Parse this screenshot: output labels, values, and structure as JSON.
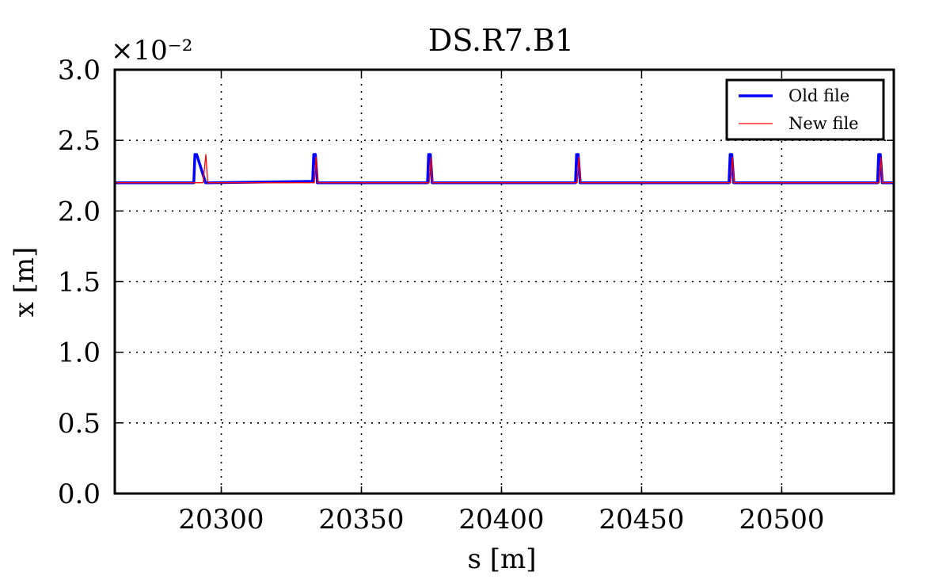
{
  "chart_data": {
    "type": "line",
    "title": "DS.R7.B1",
    "xlabel": "s [m]",
    "ylabel": "x [m]",
    "y_offset_label": "×10⁻²",
    "xlim": [
      20262,
      20540
    ],
    "ylim": [
      0.0,
      3.0
    ],
    "y_scale_factor": "1e-2",
    "x_ticks": [
      20300,
      20350,
      20400,
      20450,
      20500
    ],
    "x_tick_labels": [
      "20300",
      "20350",
      "20400",
      "20450",
      "20500"
    ],
    "y_ticks": [
      0.0,
      0.5,
      1.0,
      1.5,
      2.0,
      2.5,
      3.0
    ],
    "y_tick_labels": [
      "0.0",
      "0.5",
      "1.0",
      "1.5",
      "2.0",
      "2.5",
      "3.0"
    ],
    "grid": true,
    "legend_position": "top-right",
    "series": [
      {
        "name": "Old file",
        "color": "#0000ff",
        "x": [
          20262,
          20290.2,
          20290.6,
          20291.2,
          20294.4,
          20295.2,
          20332.6,
          20333.0,
          20333.6,
          20334.3,
          20334.8,
          20373.6,
          20374.0,
          20374.6,
          20375.3,
          20375.8,
          20426.4,
          20426.8,
          20427.4,
          20428.1,
          20428.6,
          20481.2,
          20481.6,
          20482.2,
          20482.9,
          20483.4,
          20534.2,
          20534.6,
          20535.2,
          20535.9,
          20536.4,
          20540
        ],
        "y": [
          2.2,
          2.2,
          2.4,
          2.4,
          2.2,
          2.2,
          2.21,
          2.4,
          2.4,
          2.2,
          2.2,
          2.2,
          2.4,
          2.4,
          2.2,
          2.2,
          2.2,
          2.4,
          2.4,
          2.2,
          2.2,
          2.2,
          2.4,
          2.4,
          2.2,
          2.2,
          2.2,
          2.4,
          2.4,
          2.2,
          2.2,
          2.2
        ]
      },
      {
        "name": "New file",
        "color": "#ff0000",
        "x": [
          20262,
          20293.5,
          20294.5,
          20295.2,
          20296.5,
          20333.2,
          20333.8,
          20334.4,
          20374.2,
          20374.8,
          20375.4,
          20427.0,
          20427.6,
          20428.2,
          20481.8,
          20482.4,
          20483.0,
          20534.8,
          20535.4,
          20536.0,
          20540
        ],
        "y": [
          2.2,
          2.2,
          2.4,
          2.2,
          2.2,
          2.2,
          2.38,
          2.2,
          2.2,
          2.38,
          2.2,
          2.2,
          2.38,
          2.2,
          2.2,
          2.38,
          2.2,
          2.2,
          2.38,
          2.2,
          2.2
        ]
      }
    ]
  }
}
